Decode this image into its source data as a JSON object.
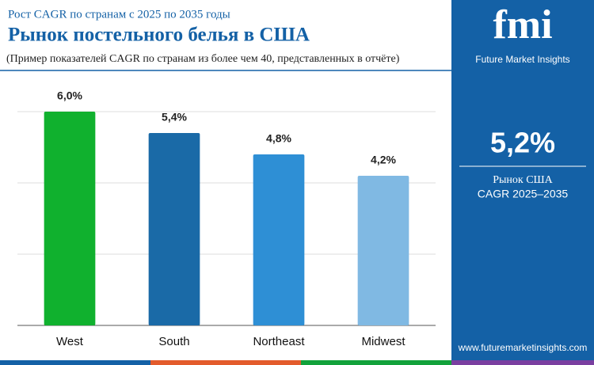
{
  "chart_data": {
    "type": "bar",
    "subtitle": "Рост CAGR по странам с 2025 по 2035 годы",
    "title": "Рынок постельного белья в США",
    "note": "(Пример показателей CAGR по странам из более чем 40, представленных в отчёте)",
    "categories": [
      "West",
      "South",
      "Northeast",
      "Midwest"
    ],
    "values": [
      6.0,
      5.4,
      4.8,
      4.2
    ],
    "value_labels": [
      "6,0%",
      "5,4%",
      "4,8%",
      "4,2%"
    ],
    "colors": [
      "#10b12e",
      "#1a6aa7",
      "#2e8fd5",
      "#80b9e3"
    ],
    "ylim": [
      0,
      6.5
    ],
    "yticks": [
      0,
      2,
      4,
      6
    ],
    "grid": true
  },
  "sidebar": {
    "logo": "fmi",
    "brand": "Future Market Insights",
    "value": "5,2%",
    "label_1": "Рынок США",
    "label_2": "CAGR 2025–2035",
    "website": "www.futuremarketinsights.com"
  }
}
